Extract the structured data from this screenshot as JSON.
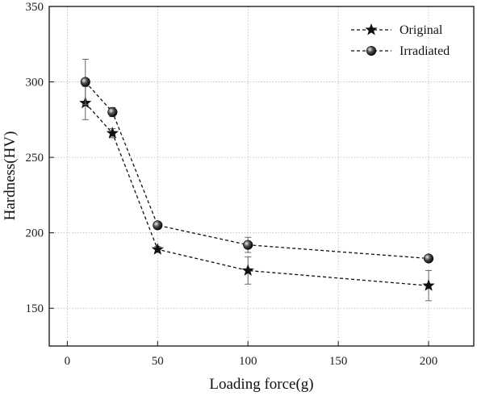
{
  "chart_data": {
    "type": "line",
    "xlabel": "Loading force(g)",
    "ylabel": "Hardness(HV)",
    "xlim": [
      -10,
      225
    ],
    "ylim": [
      125,
      350
    ],
    "xticks": [
      0,
      50,
      100,
      150,
      200
    ],
    "yticks": [
      150,
      200,
      250,
      300,
      350
    ],
    "grid": true,
    "legend_position": "top-right",
    "series": [
      {
        "name": "Original",
        "marker": "star",
        "color": "#111111",
        "x": [
          10,
          25,
          50,
          100,
          200
        ],
        "y": [
          286,
          266,
          189,
          175,
          165
        ],
        "error": [
          11,
          3,
          2,
          9,
          10
        ]
      },
      {
        "name": "Irradiated",
        "marker": "sphere",
        "color": "#111111",
        "x": [
          10,
          25,
          50,
          100,
          200
        ],
        "y": [
          300,
          280,
          205,
          192,
          183
        ],
        "error": [
          15,
          3,
          2,
          5,
          2
        ]
      }
    ]
  }
}
